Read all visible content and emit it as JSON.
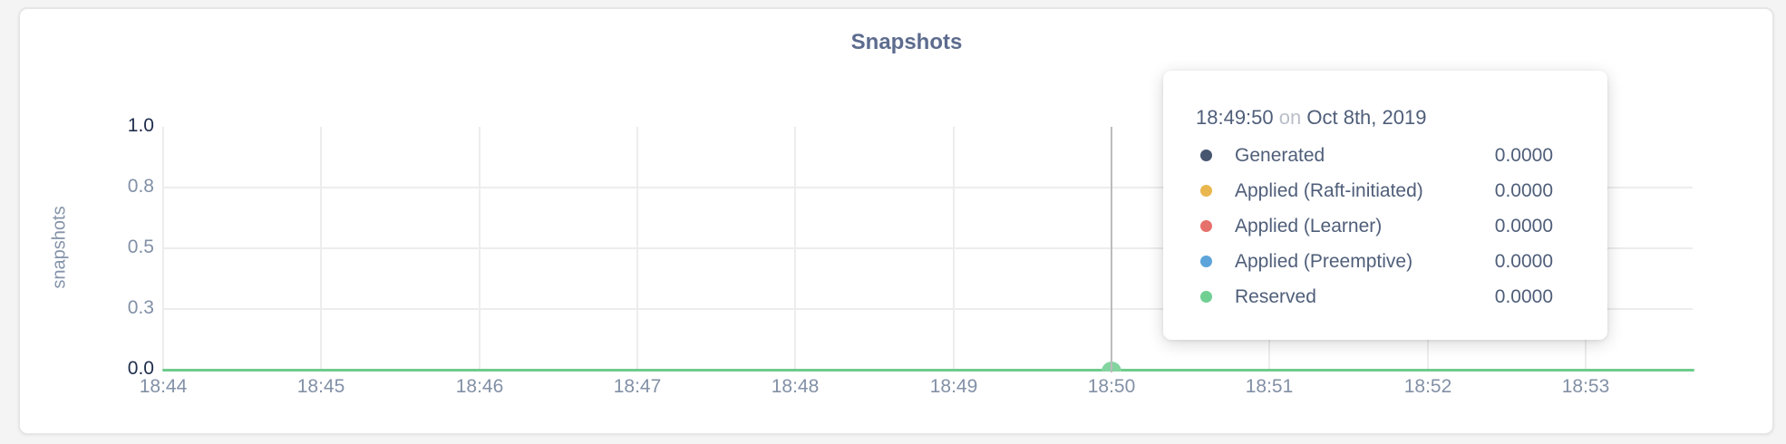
{
  "page": {
    "background": "#f4f4f5"
  },
  "panel": {
    "background": "#ffffff",
    "border_color": "#e6e6e7"
  },
  "chart_data": {
    "type": "line",
    "title": "Snapshots",
    "xlabel": "",
    "ylabel": "snapshots",
    "ylim": [
      0,
      1
    ],
    "grid": true,
    "x_tick_labels": [
      "18:44",
      "18:45",
      "18:46",
      "18:47",
      "18:48",
      "18:49",
      "18:50",
      "18:51",
      "18:52",
      "18:53"
    ],
    "y_ticks": [
      {
        "label": "1.0",
        "value": 1.0,
        "emphasis": true
      },
      {
        "label": "0.8",
        "value": 0.75,
        "emphasis": false
      },
      {
        "label": "0.5",
        "value": 0.5,
        "emphasis": false
      },
      {
        "label": "0.3",
        "value": 0.25,
        "emphasis": false
      },
      {
        "label": "0.0",
        "value": 0.0,
        "emphasis": true
      }
    ],
    "series": [
      {
        "name": "Generated",
        "color": "#47566f",
        "values_constant": 0,
        "hover_value": "0.0000"
      },
      {
        "name": "Applied (Raft-initiated)",
        "color": "#eab74e",
        "values_constant": 0,
        "hover_value": "0.0000"
      },
      {
        "name": "Applied (Learner)",
        "color": "#e6706b",
        "values_constant": 0,
        "hover_value": "0.0000"
      },
      {
        "name": "Applied (Preemptive)",
        "color": "#5ca4da",
        "values_constant": 0,
        "hover_value": "0.0000"
      },
      {
        "name": "Reserved",
        "color": "#70d092",
        "values_constant": 0,
        "hover_value": "0.0000"
      }
    ],
    "visible_line_color": "#6ecb8d",
    "hover_dot_color": "#83d49f",
    "gridline_color": "#ededee",
    "hover_line_color": "#bcbcbc",
    "hover": {
      "time": "18:49:50",
      "on_word": "on",
      "date": "Oct 8th, 2019",
      "tick_index": 6
    }
  }
}
